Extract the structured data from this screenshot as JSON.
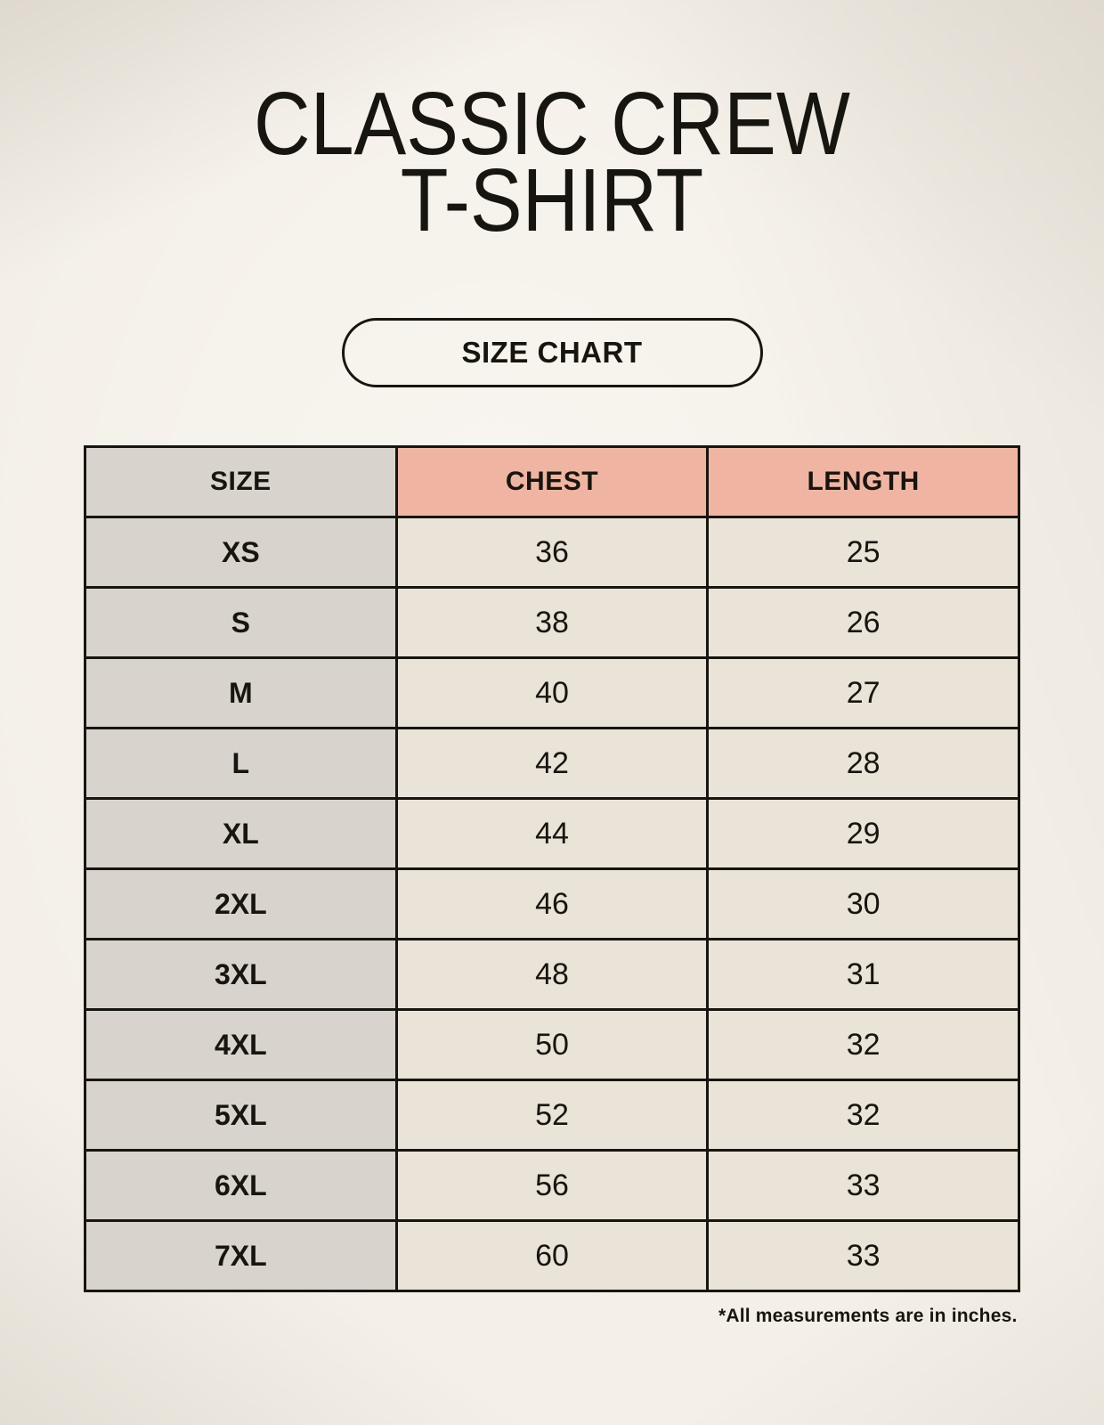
{
  "header": {
    "title_line1": "CLASSIC CREW",
    "title_line2": "T-SHIRT",
    "badge_label": "SIZE CHART"
  },
  "chart_data": {
    "type": "table",
    "title": "CLASSIC CREW T-SHIRT",
    "columns": [
      "SIZE",
      "CHEST",
      "LENGTH"
    ],
    "rows": [
      [
        "XS",
        "36",
        "25"
      ],
      [
        "S",
        "38",
        "26"
      ],
      [
        "M",
        "40",
        "27"
      ],
      [
        "L",
        "42",
        "28"
      ],
      [
        "XL",
        "44",
        "29"
      ],
      [
        "2XL",
        "46",
        "30"
      ],
      [
        "3XL",
        "48",
        "31"
      ],
      [
        "4XL",
        "50",
        "32"
      ],
      [
        "5XL",
        "52",
        "32"
      ],
      [
        "6XL",
        "56",
        "33"
      ],
      [
        "7XL",
        "60",
        "33"
      ]
    ],
    "units": "inches"
  },
  "footnote": "*All measurements are in inches.",
  "colors": {
    "background": "#f4f0e8",
    "size_column_bg": "#d9d3cd",
    "measure_header_bg": "#f0b5a2",
    "data_cell_bg": "#eae3d8",
    "border": "#17150f",
    "text": "#17150f"
  }
}
